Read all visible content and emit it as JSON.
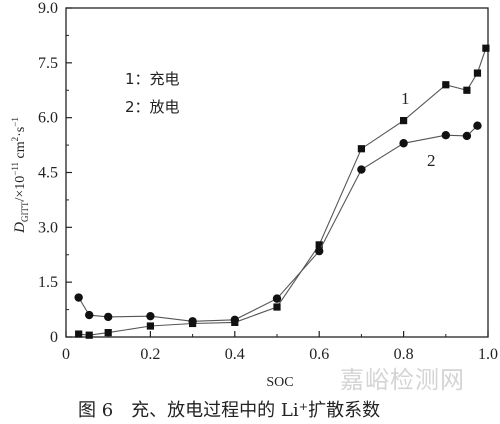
{
  "chart_data": {
    "type": "line",
    "xlabel": "SOC",
    "ylabel_main": "D",
    "ylabel_sub": "GITT",
    "ylabel_rest": "/×10",
    "ylabel_exp": "−11",
    "ylabel_unit1": " cm",
    "ylabel_unit2": "2",
    "ylabel_unit3": "·s",
    "ylabel_unit4": "−1",
    "xlim": [
      0,
      1.0
    ],
    "ylim": [
      0,
      9.0
    ],
    "xticks": [
      "0",
      "0.2",
      "0.4",
      "0.6",
      "0.8",
      "1.0"
    ],
    "xtick_values": [
      0,
      0.2,
      0.4,
      0.6,
      0.8,
      1.0
    ],
    "yticks": [
      "0",
      "1.5",
      "3.0",
      "4.5",
      "6.0",
      "7.5",
      "9.0"
    ],
    "ytick_values": [
      0,
      1.5,
      3.0,
      4.5,
      6.0,
      7.5,
      9.0
    ],
    "legend": [
      "1：充电",
      "2：放电"
    ],
    "series": [
      {
        "name": "1",
        "marker": "square",
        "x": [
          0.03,
          0.055,
          0.1,
          0.2,
          0.3,
          0.4,
          0.5,
          0.6,
          0.7,
          0.8,
          0.9,
          0.95,
          0.975,
          0.995
        ],
        "y": [
          0.08,
          0.05,
          0.12,
          0.3,
          0.37,
          0.4,
          0.82,
          2.52,
          5.15,
          5.92,
          6.9,
          6.75,
          7.22,
          7.9
        ]
      },
      {
        "name": "2",
        "marker": "circle",
        "x": [
          0.03,
          0.055,
          0.1,
          0.2,
          0.3,
          0.4,
          0.5,
          0.6,
          0.7,
          0.8,
          0.9,
          0.95,
          0.975
        ],
        "y": [
          1.08,
          0.6,
          0.55,
          0.57,
          0.43,
          0.47,
          1.05,
          2.35,
          4.58,
          5.3,
          5.52,
          5.5,
          5.78
        ]
      }
    ]
  },
  "caption": "图 6　充、放电过程中的 Li⁺扩散系数",
  "watermark": "嘉峪检测网"
}
